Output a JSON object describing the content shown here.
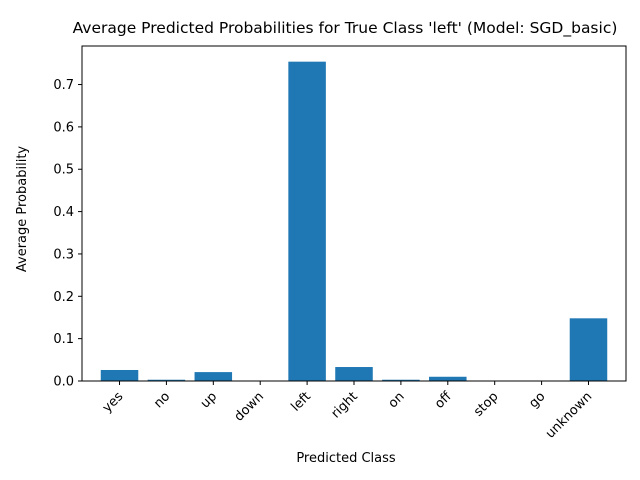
{
  "chart_data": {
    "type": "bar",
    "title": "Average Predicted Probabilities for True Class 'left' (Model: SGD_basic)",
    "xlabel": "Predicted Class",
    "ylabel": "Average Probability",
    "categories": [
      "yes",
      "no",
      "up",
      "down",
      "left",
      "right",
      "on",
      "off",
      "stop",
      "go",
      "unknown"
    ],
    "values": [
      0.026,
      0.003,
      0.021,
      0.001,
      0.754,
      0.033,
      0.003,
      0.01,
      0.001,
      0.001,
      0.148
    ],
    "ylim": [
      0,
      0.791
    ],
    "yticks": [
      0.0,
      0.1,
      0.2,
      0.3,
      0.4,
      0.5,
      0.6,
      0.7
    ],
    "ytick_labels": [
      "0.0",
      "0.1",
      "0.2",
      "0.3",
      "0.4",
      "0.5",
      "0.6",
      "0.7"
    ],
    "bar_color": "#1f77b4",
    "grid": false,
    "legend": "none"
  }
}
